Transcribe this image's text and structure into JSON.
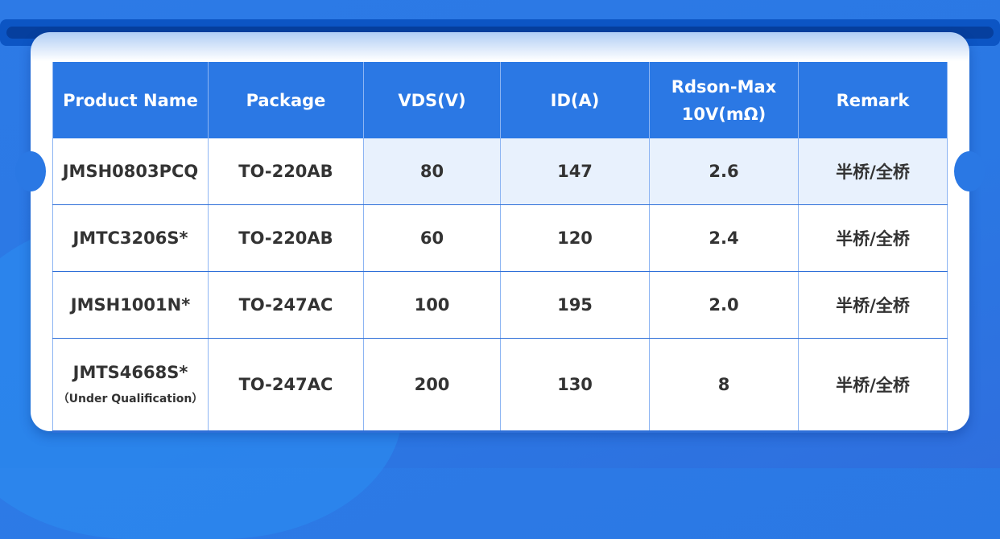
{
  "table": {
    "headers": [
      "Product Name",
      "Package",
      "VDS(V)",
      "ID(A)",
      "Rdson-Max\n10V(mΩ)",
      "Remark"
    ],
    "header_rdson_line1": "Rdson-Max",
    "header_rdson_line2": "10V(mΩ)",
    "rows": [
      {
        "name": "JMSH0803PCQ",
        "note": "",
        "package": "TO-220AB",
        "vds": "80",
        "id": "147",
        "rdson": "2.6",
        "remark": "半桥/全桥"
      },
      {
        "name": "JMTC3206S*",
        "note": "",
        "package": "TO-220AB",
        "vds": "60",
        "id": "120",
        "rdson": "2.4",
        "remark": "半桥/全桥"
      },
      {
        "name": "JMSH1001N*",
        "note": "",
        "package": "TO-247AC",
        "vds": "100",
        "id": "195",
        "rdson": "2.0",
        "remark": "半桥/全桥"
      },
      {
        "name": "JMTS4668S*",
        "note": "（Under Qualification）",
        "package": "TO-247AC",
        "vds": "200",
        "id": "130",
        "rdson": "8",
        "remark": "半桥/全桥"
      }
    ]
  },
  "colors": {
    "header": "#2b78e4",
    "highlight": "#e8f1fd",
    "background": "#2a78e4"
  }
}
